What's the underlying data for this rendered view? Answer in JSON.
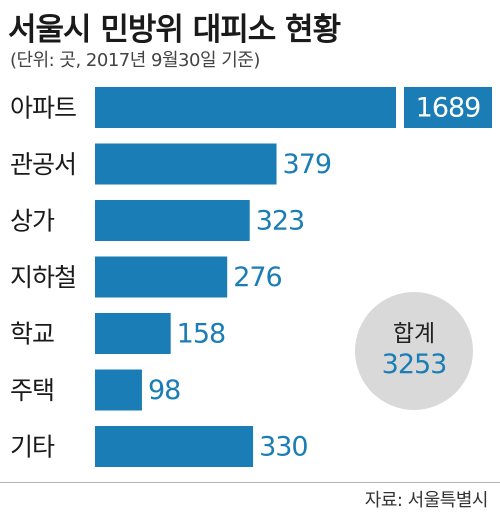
{
  "header": {
    "title": "서울시 민방위 대피소 현황",
    "subtitle": "(단위: 곳, 2017년 9월30일 기준)"
  },
  "total": {
    "label": "합계",
    "value": "3253"
  },
  "footer": {
    "source": "자료: 서울특별시"
  },
  "colors": {
    "bar": "#1a7db5",
    "badge": "#d9d9d9"
  },
  "chart_data": {
    "type": "bar",
    "orientation": "horizontal",
    "title": "서울시 민방위 대피소 현황",
    "subtitle": "(단위: 곳, 2017년 9월30일 기준)",
    "categories": [
      "아파트",
      "관공서",
      "상가",
      "지하철",
      "학교",
      "주택",
      "기타"
    ],
    "values": [
      1689,
      379,
      323,
      276,
      158,
      98,
      330
    ],
    "axis_break_on": "아파트",
    "grid": false,
    "legend": "none"
  }
}
